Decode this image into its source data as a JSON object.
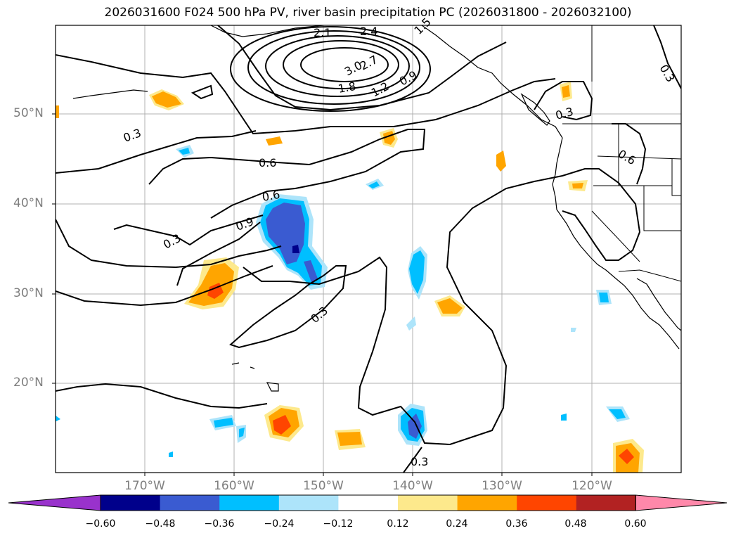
{
  "title": "2026031600 F024 500 hPa PV, river basin precipitation PC (2026031800 - 2026032100)",
  "lat_labels": [
    "50°N",
    "40°N",
    "30°N",
    "20°N"
  ],
  "lon_labels": [
    "170°W",
    "160°W",
    "150°W",
    "140°W",
    "130°W",
    "120°W"
  ],
  "contour_labels": [
    "2.1",
    "2.4",
    "3.0",
    "2.7",
    "1.8",
    "1.5",
    "1.2",
    "0.9",
    "0.3",
    "0.3",
    "0.3",
    "0.6",
    "0.6",
    "0.6",
    "0.9",
    "0.3",
    "0.3",
    "0.3"
  ],
  "colorbar": {
    "ticks": [
      "−0.60",
      "−0.48",
      "−0.36",
      "−0.24",
      "−0.12",
      "0.12",
      "0.24",
      "0.36",
      "0.48",
      "0.60"
    ],
    "colors": [
      "#9932cc",
      "#00008b",
      "#3a5bd1",
      "#00bfff",
      "#ade4fa",
      "#ffffff",
      "#fde98c",
      "#ffa500",
      "#ff4500",
      "#b22222",
      "#ff88aa"
    ]
  }
}
